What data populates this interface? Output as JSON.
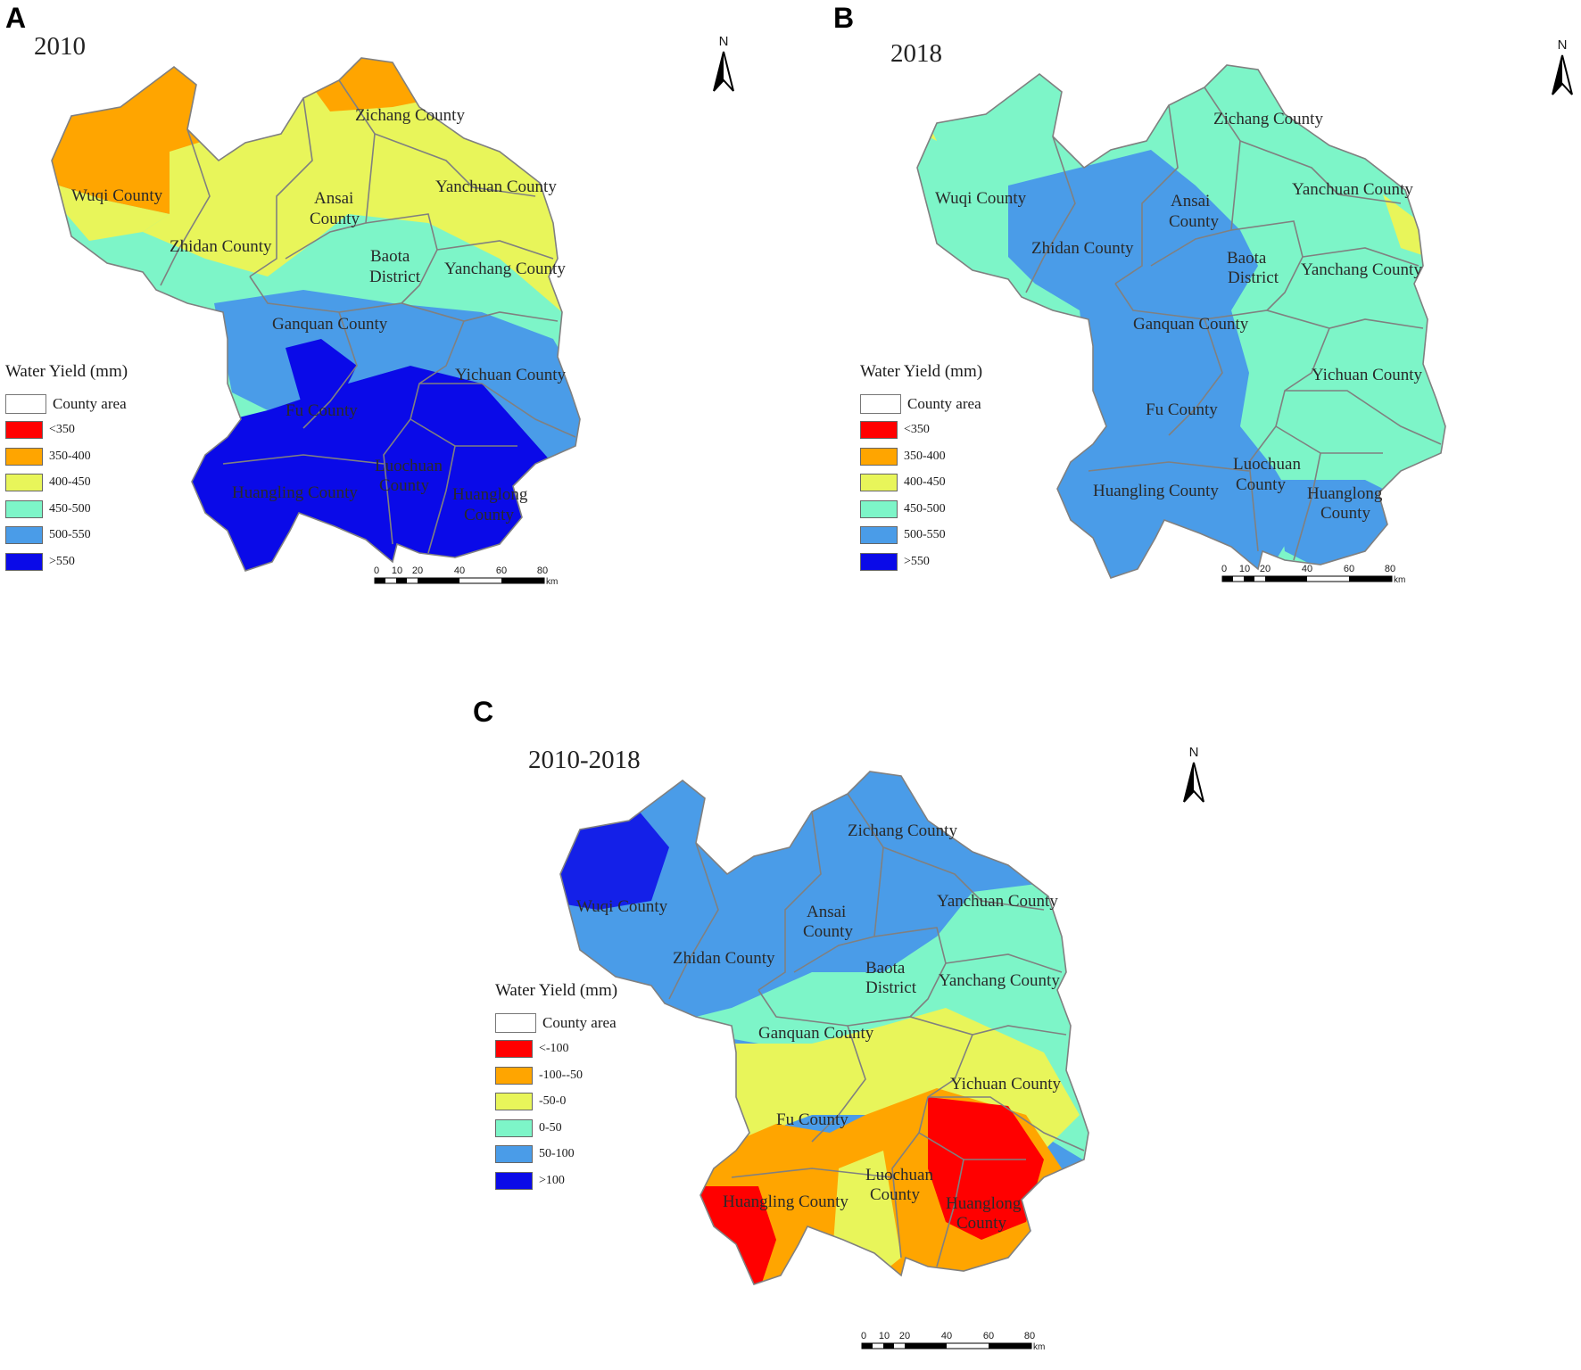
{
  "legend_title": "Water Yield (mm)",
  "county_area_label": "County area",
  "north_label": "N",
  "scale": {
    "ticks": [
      "0",
      "10",
      "20",
      "40",
      "60",
      "80"
    ],
    "unit": "km"
  },
  "panels": [
    {
      "letter": "A",
      "year": "2010",
      "legend": [
        {
          "label": "<350",
          "color": "#ff0000"
        },
        {
          "label": "350-400",
          "color": "#ffa500"
        },
        {
          "label": "400-450",
          "color": "#e8f55a"
        },
        {
          "label": "450-500",
          "color": "#7df5c8"
        },
        {
          "label": "500-550",
          "color": "#4a9ce8"
        },
        {
          "label": ">550",
          "color": "#0a0ae8"
        }
      ],
      "counties": [
        "Zichang County",
        "Wuqi County",
        "Yanchuan County",
        "Ansai",
        "County",
        "Zhidan County",
        "Baota",
        "District",
        "Yanchang County",
        "Ganquan County",
        "Yichuan County",
        "Fu County",
        "Luochuan",
        "County",
        "Huangling County",
        "Huanglong",
        "County"
      ]
    },
    {
      "letter": "B",
      "year": "2018",
      "legend": [
        {
          "label": "<350",
          "color": "#ff0000"
        },
        {
          "label": "350-400",
          "color": "#ffa500"
        },
        {
          "label": "400-450",
          "color": "#e8f55a"
        },
        {
          "label": "450-500",
          "color": "#7df5c8"
        },
        {
          "label": "500-550",
          "color": "#4a9ce8"
        },
        {
          "label": ">550",
          "color": "#0a0ae8"
        }
      ],
      "counties": [
        "Zichang County",
        "Wuqi County",
        "Yanchuan County",
        "Ansai",
        "County",
        "Zhidan County",
        "Baota",
        "District",
        "Yanchang County",
        "Ganquan County",
        "Yichuan County",
        "Fu County",
        "Luochuan",
        "County",
        "Huangling County",
        "Huanglong",
        "County"
      ]
    },
    {
      "letter": "C",
      "year": "2010-2018",
      "legend": [
        {
          "label": "<-100",
          "color": "#ff0000"
        },
        {
          "label": "-100--50",
          "color": "#ffa500"
        },
        {
          "label": "-50-0",
          "color": "#e8f55a"
        },
        {
          "label": "0-50",
          "color": "#7df5c8"
        },
        {
          "label": "50-100",
          "color": "#4a9ce8"
        },
        {
          "label": ">100",
          "color": "#0a0ae8"
        }
      ],
      "counties": [
        "Zichang County",
        "Wuqi County",
        "Yanchuan County",
        "Ansai",
        "County",
        "Zhidan County",
        "Baota",
        "District",
        "Yanchang County",
        "Ganquan County",
        "Yichuan County",
        "Fu County",
        "Luochuan",
        "County",
        "Huangling County",
        "Huanglong",
        "County"
      ]
    }
  ]
}
